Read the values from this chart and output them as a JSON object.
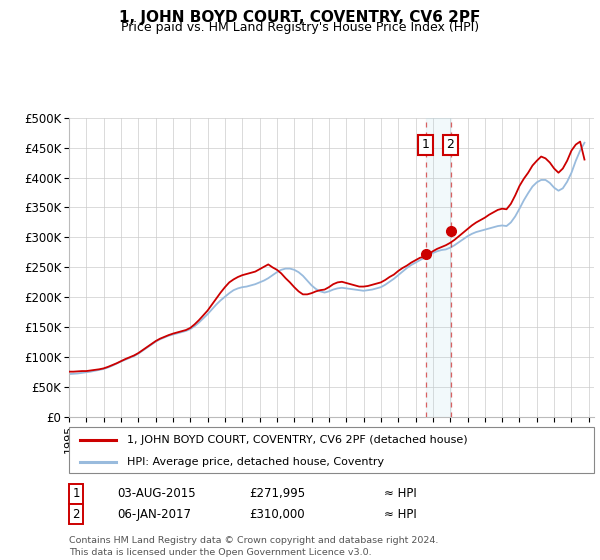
{
  "title": "1, JOHN BOYD COURT, COVENTRY, CV6 2PF",
  "subtitle": "Price paid vs. HM Land Registry's House Price Index (HPI)",
  "xlim_start": 1995.0,
  "xlim_end": 2025.3,
  "ylim_min": 0,
  "ylim_max": 500000,
  "yticks": [
    0,
    50000,
    100000,
    150000,
    200000,
    250000,
    300000,
    350000,
    400000,
    450000,
    500000
  ],
  "ytick_labels": [
    "£0",
    "£50K",
    "£100K",
    "£150K",
    "£200K",
    "£250K",
    "£300K",
    "£350K",
    "£400K",
    "£450K",
    "£500K"
  ],
  "xticks": [
    1995,
    1996,
    1997,
    1998,
    1999,
    2000,
    2001,
    2002,
    2003,
    2004,
    2005,
    2006,
    2007,
    2008,
    2009,
    2010,
    2011,
    2012,
    2013,
    2014,
    2015,
    2016,
    2017,
    2018,
    2019,
    2020,
    2021,
    2022,
    2023,
    2024,
    2025
  ],
  "line_color": "#cc0000",
  "hpi_color": "#99bbdd",
  "bg_color": "#ffffff",
  "grid_color": "#cccccc",
  "sale1_x": 2015.58,
  "sale1_y": 271995,
  "sale1_label": "1",
  "sale1_date": "03-AUG-2015",
  "sale1_price": "£271,995",
  "sale2_x": 2017.02,
  "sale2_y": 310000,
  "sale2_label": "2",
  "sale2_date": "06-JAN-2017",
  "sale2_price": "£310,000",
  "legend_line1": "1, JOHN BOYD COURT, COVENTRY, CV6 2PF (detached house)",
  "legend_line2": "HPI: Average price, detached house, Coventry",
  "footer1": "Contains HM Land Registry data © Crown copyright and database right 2024.",
  "footer2": "This data is licensed under the Open Government Licence v3.0.",
  "hpi_data_x": [
    1995.0,
    1995.25,
    1995.5,
    1995.75,
    1996.0,
    1996.25,
    1996.5,
    1996.75,
    1997.0,
    1997.25,
    1997.5,
    1997.75,
    1998.0,
    1998.25,
    1998.5,
    1998.75,
    1999.0,
    1999.25,
    1999.5,
    1999.75,
    2000.0,
    2000.25,
    2000.5,
    2000.75,
    2001.0,
    2001.25,
    2001.5,
    2001.75,
    2002.0,
    2002.25,
    2002.5,
    2002.75,
    2003.0,
    2003.25,
    2003.5,
    2003.75,
    2004.0,
    2004.25,
    2004.5,
    2004.75,
    2005.0,
    2005.25,
    2005.5,
    2005.75,
    2006.0,
    2006.25,
    2006.5,
    2006.75,
    2007.0,
    2007.25,
    2007.5,
    2007.75,
    2008.0,
    2008.25,
    2008.5,
    2008.75,
    2009.0,
    2009.25,
    2009.5,
    2009.75,
    2010.0,
    2010.25,
    2010.5,
    2010.75,
    2011.0,
    2011.25,
    2011.5,
    2011.75,
    2012.0,
    2012.25,
    2012.5,
    2012.75,
    2013.0,
    2013.25,
    2013.5,
    2013.75,
    2014.0,
    2014.25,
    2014.5,
    2014.75,
    2015.0,
    2015.25,
    2015.5,
    2015.75,
    2016.0,
    2016.25,
    2016.5,
    2016.75,
    2017.0,
    2017.25,
    2017.5,
    2017.75,
    2018.0,
    2018.25,
    2018.5,
    2018.75,
    2019.0,
    2019.25,
    2019.5,
    2019.75,
    2020.0,
    2020.25,
    2020.5,
    2020.75,
    2021.0,
    2021.25,
    2021.5,
    2021.75,
    2022.0,
    2022.25,
    2022.5,
    2022.75,
    2023.0,
    2023.25,
    2023.5,
    2023.75,
    2024.0,
    2024.25,
    2024.5,
    2024.75
  ],
  "hpi_data_y": [
    72000,
    72500,
    73000,
    74000,
    75000,
    76000,
    77500,
    79000,
    80500,
    83000,
    86000,
    89500,
    93000,
    96000,
    99000,
    102000,
    106000,
    111000,
    116000,
    121000,
    126000,
    130000,
    133000,
    136000,
    138000,
    140000,
    142000,
    144000,
    147000,
    152000,
    158000,
    165000,
    172000,
    180000,
    188000,
    195000,
    201000,
    207000,
    212000,
    215000,
    217000,
    218000,
    220000,
    222000,
    225000,
    228000,
    232000,
    237000,
    242000,
    246000,
    248000,
    248000,
    246000,
    242000,
    236000,
    228000,
    220000,
    214000,
    210000,
    208000,
    210000,
    213000,
    215000,
    216000,
    215000,
    214000,
    213000,
    212000,
    211000,
    212000,
    213000,
    215000,
    217000,
    221000,
    226000,
    231000,
    237000,
    243000,
    249000,
    254000,
    258000,
    262000,
    266000,
    270000,
    274000,
    277000,
    279000,
    280000,
    283000,
    287000,
    292000,
    297000,
    302000,
    306000,
    309000,
    311000,
    313000,
    315000,
    317000,
    319000,
    320000,
    319000,
    325000,
    335000,
    348000,
    362000,
    374000,
    385000,
    392000,
    396000,
    396000,
    391000,
    383000,
    378000,
    382000,
    393000,
    408000,
    428000,
    445000,
    458000
  ],
  "price_line_x": [
    1995.0,
    1995.25,
    1995.5,
    1995.75,
    1996.0,
    1996.25,
    1996.5,
    1996.75,
    1997.0,
    1997.25,
    1997.5,
    1997.75,
    1998.0,
    1998.25,
    1998.5,
    1998.75,
    1999.0,
    1999.25,
    1999.5,
    1999.75,
    2000.0,
    2000.25,
    2000.5,
    2000.75,
    2001.0,
    2001.25,
    2001.5,
    2001.75,
    2002.0,
    2002.25,
    2002.5,
    2002.75,
    2003.0,
    2003.25,
    2003.5,
    2003.75,
    2004.0,
    2004.25,
    2004.5,
    2004.75,
    2005.0,
    2005.25,
    2005.5,
    2005.75,
    2006.0,
    2006.25,
    2006.5,
    2006.75,
    2007.0,
    2007.25,
    2007.5,
    2007.75,
    2008.0,
    2008.25,
    2008.5,
    2008.75,
    2009.0,
    2009.25,
    2009.5,
    2009.75,
    2010.0,
    2010.25,
    2010.5,
    2010.75,
    2011.0,
    2011.25,
    2011.5,
    2011.75,
    2012.0,
    2012.25,
    2012.5,
    2012.75,
    2013.0,
    2013.25,
    2013.5,
    2013.75,
    2014.0,
    2014.25,
    2014.5,
    2014.75,
    2015.0,
    2015.25,
    2015.5,
    2015.75,
    2016.0,
    2016.25,
    2016.5,
    2016.75,
    2017.0,
    2017.25,
    2017.5,
    2017.75,
    2018.0,
    2018.25,
    2018.5,
    2018.75,
    2019.0,
    2019.25,
    2019.5,
    2019.75,
    2020.0,
    2020.25,
    2020.5,
    2020.75,
    2021.0,
    2021.25,
    2021.5,
    2021.75,
    2022.0,
    2022.25,
    2022.5,
    2022.75,
    2023.0,
    2023.25,
    2023.5,
    2023.75,
    2024.0,
    2024.25,
    2024.5,
    2024.75
  ],
  "price_line_y": [
    76000,
    76000,
    76500,
    77000,
    77000,
    78000,
    79000,
    80000,
    81500,
    84000,
    87000,
    90000,
    93500,
    97000,
    100000,
    103000,
    107000,
    112000,
    117000,
    122000,
    127000,
    131000,
    134000,
    137000,
    139500,
    141500,
    143500,
    145500,
    149000,
    155000,
    162000,
    170000,
    178000,
    188000,
    198000,
    208000,
    217000,
    225000,
    230000,
    234000,
    237000,
    239000,
    241000,
    243000,
    247000,
    251000,
    255000,
    250000,
    246000,
    240000,
    232000,
    225000,
    217000,
    210000,
    205000,
    205000,
    207000,
    210000,
    212000,
    213000,
    217000,
    222000,
    225000,
    226000,
    224000,
    222000,
    220000,
    218000,
    218000,
    219000,
    221000,
    223000,
    225000,
    229000,
    234000,
    238000,
    244000,
    249000,
    253000,
    258000,
    262000,
    266000,
    268000,
    272000,
    277000,
    281000,
    284000,
    287000,
    291000,
    296000,
    302000,
    308000,
    314000,
    320000,
    325000,
    329000,
    333000,
    338000,
    342000,
    346000,
    348000,
    347000,
    356000,
    370000,
    386000,
    398000,
    408000,
    420000,
    428000,
    435000,
    432000,
    425000,
    415000,
    408000,
    415000,
    428000,
    445000,
    455000,
    460000,
    430000
  ]
}
